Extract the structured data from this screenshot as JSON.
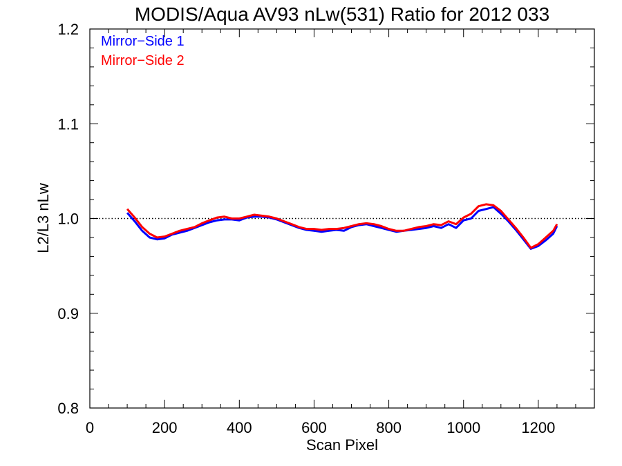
{
  "chart_data": {
    "type": "line",
    "title": "MODIS/Aqua AV93 nLw(531) Ratio for 2012 033",
    "xlabel": "Scan Pixel",
    "ylabel": "L2/L3 nLw",
    "xlim": [
      0,
      1350
    ],
    "ylim": [
      0.8,
      1.2
    ],
    "x_ticks": [
      0,
      200,
      400,
      600,
      800,
      1000,
      1200
    ],
    "x_tick_labels": [
      "0",
      "200",
      "400",
      "600",
      "800",
      "1000",
      "1200"
    ],
    "y_ticks": [
      0.8,
      0.9,
      1.0,
      1.1,
      1.2
    ],
    "y_tick_labels": [
      "0.8",
      "0.9",
      "1.0",
      "1.1",
      "1.2"
    ],
    "reference_line": 1.0,
    "legend": {
      "position": "top-left",
      "entries": [
        {
          "label": "Mirror−Side 1",
          "color": "#0000ff"
        },
        {
          "label": "Mirror−Side 2",
          "color": "#ff0000"
        }
      ]
    },
    "x": [
      100,
      120,
      140,
      160,
      180,
      200,
      220,
      240,
      260,
      280,
      300,
      320,
      340,
      360,
      380,
      400,
      420,
      440,
      460,
      480,
      500,
      520,
      540,
      560,
      580,
      600,
      620,
      640,
      660,
      680,
      700,
      720,
      740,
      760,
      780,
      800,
      820,
      840,
      860,
      880,
      900,
      920,
      940,
      960,
      980,
      1000,
      1020,
      1040,
      1060,
      1080,
      1100,
      1120,
      1140,
      1160,
      1180,
      1200,
      1220,
      1240,
      1250
    ],
    "series": [
      {
        "name": "Mirror−Side 1",
        "color": "#0000ff",
        "values": [
          1.006,
          0.997,
          0.987,
          0.98,
          0.978,
          0.979,
          0.983,
          0.985,
          0.987,
          0.99,
          0.993,
          0.996,
          0.998,
          0.999,
          0.999,
          0.998,
          1.001,
          1.002,
          1.002,
          1.001,
          0.999,
          0.996,
          0.993,
          0.99,
          0.988,
          0.987,
          0.986,
          0.987,
          0.988,
          0.987,
          0.991,
          0.993,
          0.994,
          0.992,
          0.99,
          0.988,
          0.986,
          0.987,
          0.988,
          0.989,
          0.99,
          0.992,
          0.99,
          0.994,
          0.99,
          0.998,
          1.0,
          1.008,
          1.01,
          1.012,
          1.005,
          0.997,
          0.988,
          0.978,
          0.968,
          0.971,
          0.977,
          0.984,
          0.992
        ]
      },
      {
        "name": "Mirror−Side 2",
        "color": "#ff0000",
        "values": [
          1.01,
          1.001,
          0.991,
          0.984,
          0.98,
          0.981,
          0.984,
          0.987,
          0.989,
          0.991,
          0.995,
          0.998,
          1.001,
          1.002,
          1.0,
          1.0,
          1.002,
          1.004,
          1.003,
          1.002,
          1.0,
          0.997,
          0.994,
          0.991,
          0.989,
          0.989,
          0.988,
          0.989,
          0.989,
          0.99,
          0.992,
          0.994,
          0.995,
          0.994,
          0.992,
          0.989,
          0.987,
          0.987,
          0.989,
          0.991,
          0.992,
          0.994,
          0.993,
          0.997,
          0.994,
          1.001,
          1.005,
          1.013,
          1.015,
          1.014,
          1.008,
          0.999,
          0.99,
          0.98,
          0.969,
          0.973,
          0.98,
          0.987,
          0.994
        ]
      }
    ]
  }
}
